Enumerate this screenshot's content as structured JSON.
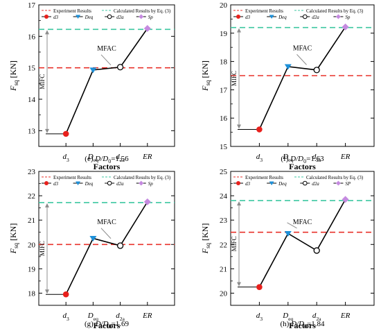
{
  "legend_labels": {
    "exp": "Experiment Results",
    "calc": "Calculated  Results by Eq. (3)"
  },
  "colors": {
    "exp_line": "#e8312a",
    "calc_line": "#3cc7a0",
    "d3_marker": "#e8201c",
    "deq_marker": "#1e90d8",
    "sp_marker": "#c58ae0",
    "arrow": "#8c8c8c",
    "polyline": "#000000"
  },
  "chart_data": [
    {
      "type": "line",
      "panel": "e",
      "categories": [
        "d3",
        "Deq",
        "d2a",
        "ER"
      ],
      "values": [
        12.9,
        14.93,
        15.02,
        16.25
      ],
      "experiment_line": 15.0,
      "calculated_line": 16.22,
      "ylim": [
        12.5,
        17
      ],
      "yticks": [
        13,
        14,
        15,
        16,
        17
      ],
      "ylabel_main": "F",
      "ylabel_sub": "sq",
      "ylabel_unit": " [KN]",
      "xlabel": "Factors",
      "caption_letter": "(e)",
      "caption_value": "=1.56",
      "mifc_label": "MIFC",
      "mfac_label": "MFAC",
      "legend_entries": [
        "d3",
        "Deq",
        "d2a",
        "Sp"
      ]
    },
    {
      "type": "line",
      "panel": "f",
      "categories": [
        "d3",
        "Deq",
        "d2a",
        "ER"
      ],
      "values": [
        15.6,
        17.82,
        17.7,
        19.22
      ],
      "experiment_line": 17.5,
      "calculated_line": 19.2,
      "ylim": [
        15,
        20
      ],
      "yticks": [
        15,
        16,
        17,
        18,
        19,
        20
      ],
      "ylabel_main": "F",
      "ylabel_sub": "sq",
      "ylabel_unit": " [KN]",
      "xlabel": "Factors",
      "caption_letter": "(f)",
      "caption_value": "=1.63",
      "mifc_label": "MIFC",
      "mfac_label": "MFAC",
      "legend_entries": [
        "d3",
        "Deq",
        "d2a",
        "Sp"
      ]
    },
    {
      "type": "line",
      "panel": "g",
      "categories": [
        "d3",
        "Deq",
        "d2a",
        "ER"
      ],
      "values": [
        17.95,
        20.25,
        19.95,
        21.75
      ],
      "experiment_line": 20.0,
      "calculated_line": 21.72,
      "ylim": [
        17.5,
        23
      ],
      "yticks": [
        18,
        19,
        20,
        21,
        22,
        23
      ],
      "ylabel_main": "F",
      "ylabel_sub": "sq",
      "ylabel_unit": " [KN]",
      "xlabel": "Factors",
      "caption_letter": "(g)",
      "caption_value": "=1.69",
      "mifc_label": "MIFC",
      "mfac_label": "MFAC",
      "legend_entries": [
        "d3",
        "Deq",
        "d2a",
        "Sp"
      ]
    },
    {
      "type": "line",
      "panel": "h",
      "categories": [
        "d3",
        "Deq",
        "d2a",
        "ER"
      ],
      "values": [
        20.25,
        22.45,
        21.75,
        23.85
      ],
      "experiment_line": 22.5,
      "calculated_line": 23.8,
      "ylim": [
        19.5,
        25
      ],
      "yticks": [
        20,
        21,
        22,
        23,
        24,
        25
      ],
      "ylabel_main": "F",
      "ylabel_sub": "sq",
      "ylabel_unit": " [KN]",
      "xlabel": "Factors",
      "caption_letter": "(h)",
      "caption_value": "=1.84",
      "mifc_label": "MIFC",
      "mfac_label": "MFAC",
      "legend_entries": [
        "d3",
        "Deq",
        "d2a",
        "SP"
      ]
    }
  ]
}
